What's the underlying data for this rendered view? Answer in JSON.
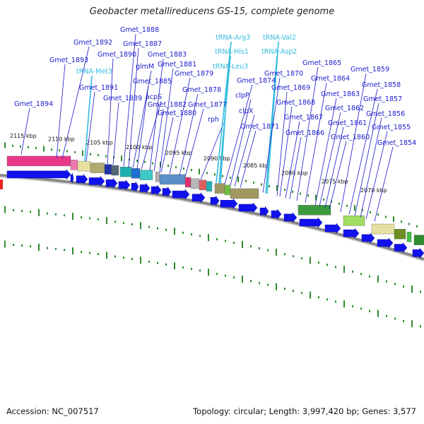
{
  "title": "Geobacter metallireducens GS-15, complete genome",
  "footer": {
    "accession": "Accession: NC_007517",
    "summary": "Topology: circular; Length: 3,997,420 bp; Genes: 3,577"
  },
  "colors": {
    "gene_label": "#1a1acc",
    "rna_label": "#33bbdd",
    "backbone": "#888888",
    "arrow": "#1111ee",
    "tick_green": "#2e8b2e"
  },
  "scale_ticks": [
    "2115 kbp",
    "2110 kbp",
    "2105 kbp",
    "2100 kbp",
    "2095 kbp",
    "2090 kbp",
    "2085 kbp",
    "2080 kbp",
    "2075 kbp",
    "2070 kbp"
  ],
  "gene_labels": [
    "Gmet_1894",
    "Gmet_1893",
    "Gmet_1892",
    "tRNA-Met3",
    "Gmet_1891",
    "Gmet_1890",
    "Gmet_1888",
    "Gmet_1889",
    "Gmet_1887",
    "glmM",
    "Gmet_1885",
    "acpS",
    "Gmet_1883",
    "Gmet_1881",
    "Gmet_1882",
    "Gmet_1880",
    "Gmet_1879",
    "Gmet_1878",
    "Gmet_1877",
    "rph",
    "tRNA-Arg3",
    "tRNA-His1",
    "tRNA-Leu3",
    "Gmet_1874",
    "clpP",
    "clpX",
    "Gmet_1871",
    "tRNA-Val2",
    "tRNA-Asp2",
    "Gmet_1870",
    "Gmet_1869",
    "Gmet_1868",
    "Gmet_1867",
    "Gmet_1866",
    "Gmet_1865",
    "Gmet_1864",
    "Gmet_1863",
    "Gmet_1862",
    "Gmet_1861",
    "Gmet_1860",
    "Gmet_1859",
    "Gmet_1858",
    "Gmet_1857",
    "Gmet_1856",
    "Gmet_1855",
    "Gmet_1854"
  ],
  "rna_labels": [
    "tRNA-Met3",
    "tRNA-Arg3",
    "tRNA-His1",
    "tRNA-Leu3",
    "tRNA-Val2",
    "tRNA-Asp2"
  ]
}
